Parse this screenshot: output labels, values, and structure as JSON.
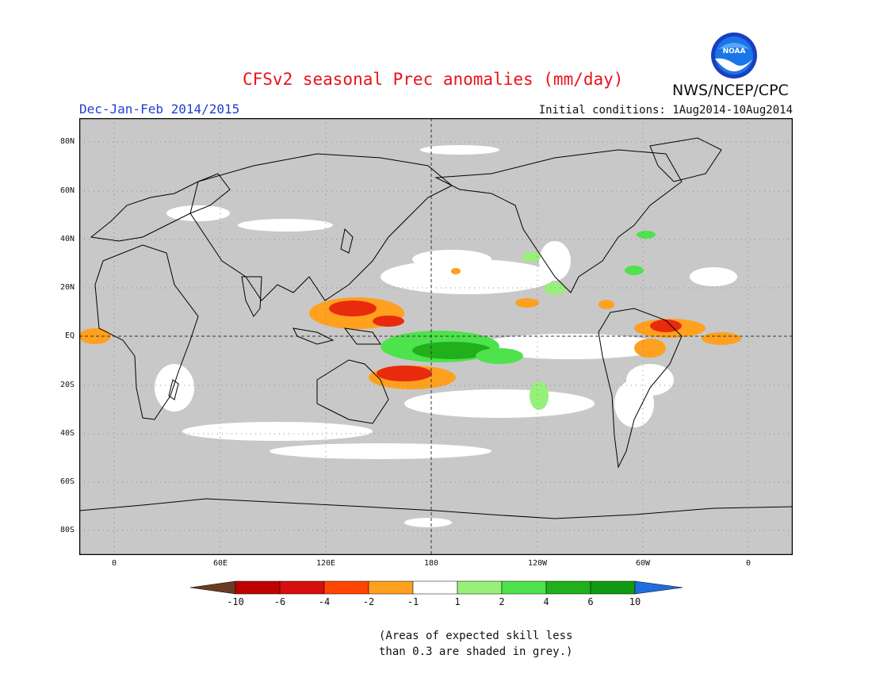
{
  "header": {
    "title": "CFSv2 seasonal Prec anomalies (mm/day)",
    "period": "Dec-Jan-Feb 2014/2015",
    "initial_conditions": "Initial conditions: 1Aug2014-10Aug2014",
    "agency": "NWS/NCEP/CPC",
    "logo_text": "NOAA"
  },
  "map": {
    "lat_labels": [
      "80N",
      "60N",
      "40N",
      "20N",
      "EQ",
      "20S",
      "40S",
      "60S",
      "80S"
    ],
    "lon_labels": [
      "0",
      "60E",
      "120E",
      "180",
      "120W",
      "60W",
      "0"
    ],
    "colors": {
      "grey_mask": "#c8c8c8",
      "dry_-1": "#ffa01f",
      "dry_-2": "#ff5e17",
      "dry_-4": "#e82b0d",
      "wet_1": "#97f07a",
      "wet_2": "#4ee24c",
      "wet_4": "#1fb01c"
    }
  },
  "legend": {
    "tick_labels": [
      "-10",
      "-6",
      "-4",
      "-2",
      "-1",
      "1",
      "2",
      "4",
      "6",
      "10"
    ],
    "colors": [
      "#6a3a25",
      "#bd0000",
      "#d80d0d",
      "#ff4500",
      "#ffa01f",
      "#ffffff",
      "#97f07a",
      "#4ee24c",
      "#1fb01c",
      "#0f9a12",
      "#1f6ee0"
    ]
  },
  "footnote": {
    "line1": "(Areas of expected skill less",
    "line2": "than 0.3 are shaded in grey.)"
  }
}
